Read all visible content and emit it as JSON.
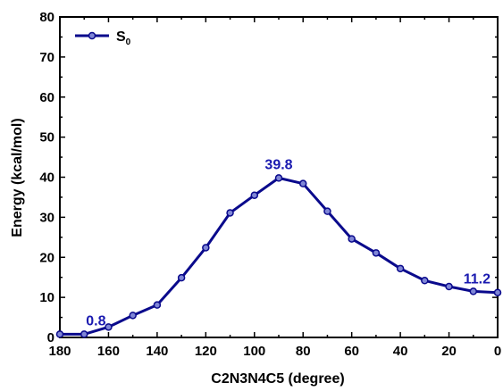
{
  "chart_data": {
    "type": "line",
    "xlabel": "C2N3N4C5 (degree)",
    "ylabel": "Energy (kcal/mol)",
    "xlim": [
      180,
      0
    ],
    "ylim": [
      0,
      80
    ],
    "x_ticks": [
      180,
      160,
      140,
      120,
      100,
      80,
      60,
      40,
      20,
      0
    ],
    "y_ticks": [
      0,
      10,
      20,
      30,
      40,
      50,
      60,
      70,
      80
    ],
    "grid": false,
    "legend_position": "top-left",
    "series": [
      {
        "name": "S",
        "name_subscript": "0",
        "color": "#0a0a8c",
        "x": [
          180,
          170,
          160,
          150,
          140,
          130,
          120,
          110,
          100,
          90,
          80,
          70,
          60,
          50,
          40,
          30,
          20,
          10,
          0
        ],
        "y": [
          0.8,
          0.8,
          2.6,
          5.5,
          8.1,
          14.9,
          22.4,
          31.1,
          35.5,
          39.8,
          38.4,
          31.5,
          24.6,
          21.1,
          17.2,
          14.2,
          12.7,
          11.5,
          11.2
        ]
      }
    ],
    "annotations": [
      {
        "text": "0.8",
        "x": 170,
        "y": 0.8
      },
      {
        "text": "39.8",
        "x": 90,
        "y": 39.8
      },
      {
        "text": "11.2",
        "x": 0,
        "y": 11.2
      }
    ],
    "annotation_color": "#1a1ab0"
  }
}
